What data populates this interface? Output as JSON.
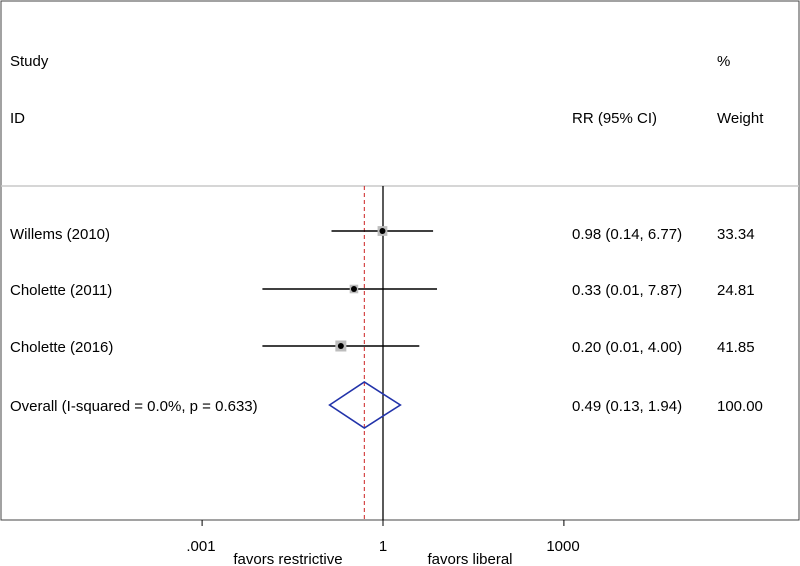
{
  "chart_data": {
    "type": "forest",
    "header": {
      "col1_line1": "Study",
      "col1_line2": "ID",
      "col2": "RR (95% CI)",
      "col3_line1": "%",
      "col3_line2": "Weight"
    },
    "studies": [
      {
        "label": "Willems (2010)",
        "rr": 0.98,
        "lo": 0.14,
        "hi": 6.77,
        "ci_text": "0.98 (0.14, 6.77)",
        "weight": "33.34"
      },
      {
        "label": "Cholette (2011)",
        "rr": 0.33,
        "lo": 0.01,
        "hi": 7.87,
        "ci_text": "0.33 (0.01, 7.87)",
        "weight": "24.81"
      },
      {
        "label": "Cholette (2016)",
        "rr": 0.2,
        "lo": 0.01,
        "hi": 4.0,
        "ci_text": "0.20 (0.01, 4.00)",
        "weight": "41.85"
      }
    ],
    "overall": {
      "label": "Overall  (I-squared = 0.0%, p = 0.633)",
      "rr": 0.49,
      "lo": 0.13,
      "hi": 1.94,
      "ci_text": "0.49 (0.13, 1.94)",
      "weight": "100.00"
    },
    "x_axis": {
      "scale": "log",
      "range": [
        0.001,
        1000
      ],
      "ticks": [
        {
          "value": 0.001,
          "label": ".001"
        },
        {
          "value": 1,
          "label": "1"
        },
        {
          "value": 1000,
          "label": "1000"
        }
      ],
      "left_label": "favors restrictive",
      "right_label": "favors liberal"
    },
    "null_line": 1,
    "colors": {
      "diamond": "#2233aa",
      "overall_line": "#cc2222",
      "line": "#000000",
      "frame": "#444444",
      "separator": "#c8c8c8"
    }
  }
}
